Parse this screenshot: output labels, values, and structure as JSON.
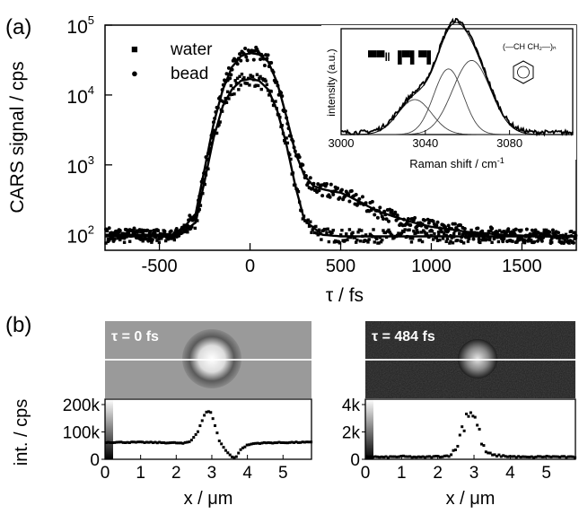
{
  "chart_data": [
    {
      "panel_label": "(a)",
      "type": "scatter",
      "xlabel": "τ / fs",
      "ylabel": "CARS signal / cps",
      "xlim": [
        -800,
        1800
      ],
      "ylim": [
        60,
        100000
      ],
      "yscale": "log",
      "x_ticks": [
        "-500",
        "0",
        "500",
        "1000",
        "1500"
      ],
      "x_tick_values": [
        -500,
        0,
        500,
        1000,
        1500
      ],
      "y_ticks": [
        {
          "base": "10",
          "exp": "2",
          "value": 100
        },
        {
          "base": "10",
          "exp": "3",
          "value": 1000
        },
        {
          "base": "10",
          "exp": "4",
          "value": 10000
        },
        {
          "base": "10",
          "exp": "5",
          "value": 100000
        }
      ],
      "legend": {
        "position": "top-left",
        "entries": [
          {
            "marker": "■",
            "name": "water"
          },
          {
            "marker": "●",
            "name": "bead"
          }
        ]
      },
      "series": [
        {
          "name": "water",
          "marker": "square",
          "x": [
            -800,
            -600,
            -400,
            -300,
            -250,
            -200,
            -150,
            -100,
            -50,
            0,
            50,
            100,
            150,
            200,
            250,
            300,
            400,
            500,
            800,
            1200,
            1800
          ],
          "y": [
            95,
            95,
            95,
            150,
            600,
            2500,
            7000,
            12000,
            16000,
            17000,
            16000,
            12000,
            6000,
            2000,
            500,
            160,
            100,
            95,
            95,
            95,
            95
          ]
        },
        {
          "name": "bead",
          "marker": "circle",
          "x": [
            -800,
            -600,
            -400,
            -300,
            -250,
            -200,
            -150,
            -100,
            -50,
            0,
            50,
            100,
            150,
            200,
            250,
            300,
            350,
            400,
            450,
            500,
            550,
            600,
            700,
            800,
            900,
            1000,
            1100,
            1200,
            1400,
            1600,
            1800
          ],
          "y": [
            100,
            100,
            100,
            200,
            900,
            4000,
            12000,
            25000,
            36000,
            40000,
            38000,
            30000,
            15000,
            5000,
            1500,
            700,
            500,
            450,
            420,
            400,
            350,
            300,
            220,
            180,
            150,
            130,
            120,
            110,
            100,
            95,
            95
          ]
        }
      ]
    },
    {
      "panel_label": "",
      "type": "line",
      "inset": true,
      "xlabel": "Raman shift / cm-1",
      "ylabel": "intensity (a.u.)",
      "xlim": [
        3000,
        3110
      ],
      "x_ticks": [
        "3000",
        "3040",
        "3080"
      ],
      "x_tick_values": [
        3000,
        3040,
        3080
      ],
      "annotations": [
        "▀▀ǁ ▐▀▌▀▌",
        "(—CH CH₂—)ₙ"
      ],
      "series": [
        {
          "name": "",
          "center": 3035,
          "height": 0.33,
          "width": 8
        },
        {
          "name": "",
          "center": 3051,
          "height": 0.62,
          "width": 7
        },
        {
          "name": "",
          "center": 3062,
          "height": 0.7,
          "width": 9
        }
      ]
    },
    {
      "panel_label": "(b)",
      "type": "line",
      "image_label": "τ = 0 fs",
      "xlabel": "x  /  μm",
      "ylabel": "int. / cps",
      "xlim": [
        0,
        5.8
      ],
      "ylim": [
        0,
        200000
      ],
      "x_ticks": [
        "0",
        "1",
        "2",
        "3",
        "4",
        "5"
      ],
      "x_tick_values": [
        0,
        1,
        2,
        3,
        4,
        5
      ],
      "y_ticks": [
        "0",
        "100k",
        "200k"
      ],
      "y_tick_values": [
        0,
        100000,
        200000
      ],
      "series": [
        {
          "name": "",
          "x": [
            0,
            0.5,
            1,
            1.5,
            2,
            2.2,
            2.4,
            2.6,
            2.8,
            2.9,
            3.0,
            3.1,
            3.2,
            3.4,
            3.6,
            3.7,
            3.8,
            4.0,
            4.2,
            4.5,
            5,
            5.5,
            5.8
          ],
          "y": [
            62000,
            62000,
            62000,
            61000,
            60000,
            58000,
            65000,
            100000,
            165000,
            175000,
            165000,
            120000,
            70000,
            30000,
            5000,
            10000,
            35000,
            52000,
            58000,
            60000,
            61000,
            62000,
            62000
          ]
        }
      ]
    },
    {
      "panel_label": "",
      "type": "line",
      "image_label": "τ = 484 fs",
      "xlabel": "x  /  μm",
      "ylabel": "",
      "xlim": [
        0,
        5.8
      ],
      "ylim": [
        0,
        4000
      ],
      "x_ticks": [
        "0",
        "1",
        "2",
        "3",
        "4",
        "5"
      ],
      "x_tick_values": [
        0,
        1,
        2,
        3,
        4,
        5
      ],
      "y_ticks": [
        "0",
        "2k",
        "4k"
      ],
      "y_tick_values": [
        0,
        2000,
        4000
      ],
      "series": [
        {
          "name": "",
          "x": [
            0,
            0.5,
            1,
            1.5,
            2,
            2.3,
            2.5,
            2.6,
            2.7,
            2.8,
            2.9,
            3.0,
            3.1,
            3.2,
            3.3,
            3.5,
            4,
            4.5,
            5,
            5.8
          ],
          "y": [
            200,
            150,
            200,
            150,
            200,
            250,
            700,
            1600,
            2500,
            3300,
            3800,
            3200,
            2400,
            1400,
            600,
            300,
            200,
            150,
            200,
            150
          ]
        }
      ]
    }
  ]
}
